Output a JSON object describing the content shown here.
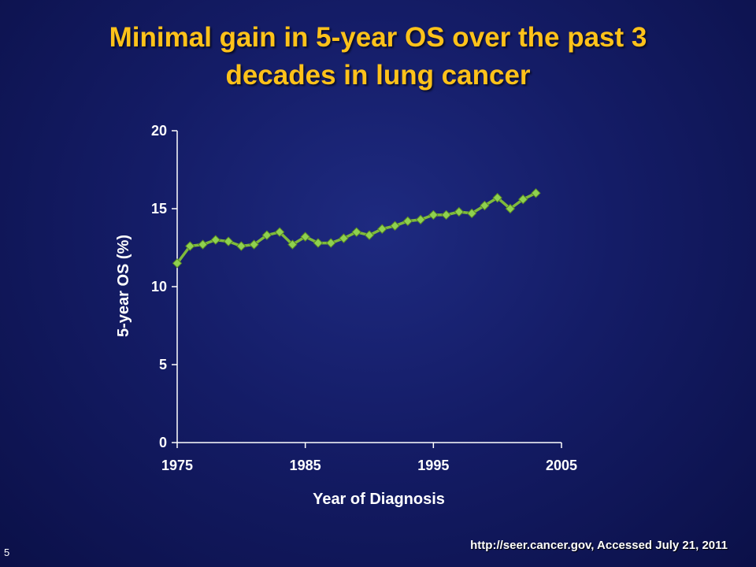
{
  "slide": {
    "title_lines": [
      "Minimal gain in 5-year OS over the past 3",
      "decades in lung cancer"
    ],
    "source": "http://seer.cancer.gov, Accessed July 21, 2011",
    "slide_number": "5"
  },
  "colors": {
    "title": "#ffc21a",
    "series_line": "#7fba3c",
    "marker": "#8fd14f",
    "axis": "#ffffff"
  },
  "chart_data": {
    "type": "line",
    "title": "",
    "xlabel": "Year of Diagnosis",
    "ylabel": "5-year OS (%)",
    "xlim": [
      1975,
      2005
    ],
    "ylim": [
      0,
      20
    ],
    "xticks": [
      "1975",
      "1985",
      "1995",
      "2005"
    ],
    "yticks": [
      "0",
      "5",
      "10",
      "15",
      "20"
    ],
    "grid": false,
    "legend": "none",
    "series": [
      {
        "marker": "diamond",
        "x": [
          1975,
          1976,
          1977,
          1978,
          1979,
          1980,
          1981,
          1982,
          1983,
          1984,
          1985,
          1986,
          1987,
          1988,
          1989,
          1990,
          1991,
          1992,
          1993,
          1994,
          1995,
          1996,
          1997,
          1998,
          1999,
          2000,
          2001,
          2002,
          2003
        ],
        "y": [
          11.5,
          12.6,
          12.7,
          13.0,
          12.9,
          12.6,
          12.7,
          13.3,
          13.5,
          12.7,
          13.2,
          12.8,
          12.8,
          13.1,
          13.5,
          13.3,
          13.7,
          13.9,
          14.2,
          14.3,
          14.6,
          14.6,
          14.8,
          14.7,
          15.2,
          15.7,
          15.0,
          15.6,
          16.0
        ]
      }
    ]
  }
}
